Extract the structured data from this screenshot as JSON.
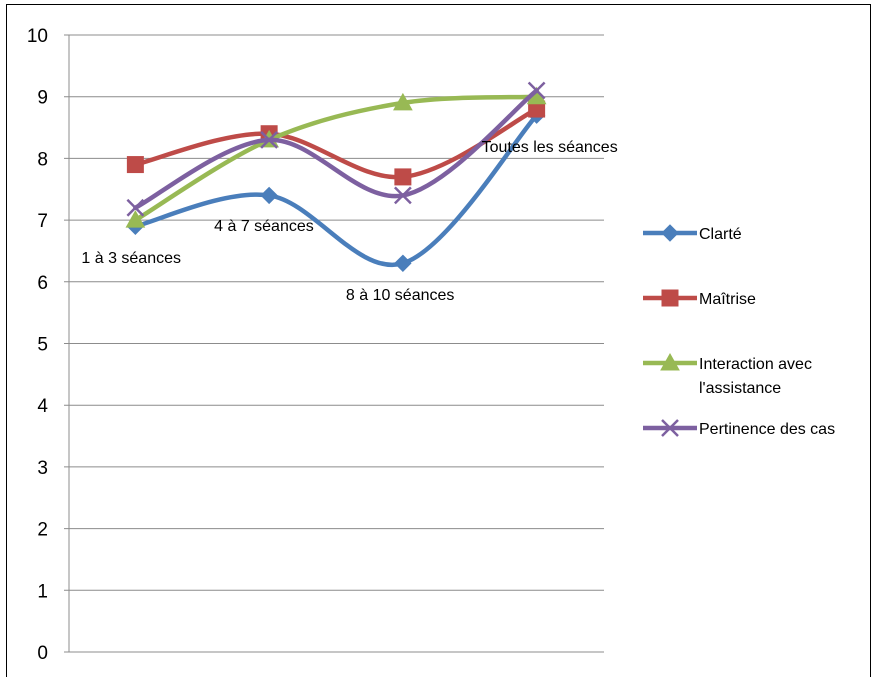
{
  "chart_data": {
    "type": "line",
    "title": "",
    "xlabel": "",
    "ylabel": "",
    "ylim": [
      0,
      10
    ],
    "yticks": [
      0,
      1,
      2,
      3,
      4,
      5,
      6,
      7,
      8,
      9,
      10
    ],
    "grid": "horizontal",
    "legend_position": "right",
    "categories": [
      "1 à 3 séances",
      "4 à 7 séances",
      "8 à 10 séances",
      "Toutes les séances"
    ],
    "series": [
      {
        "name": "Clarté",
        "values": [
          6.9,
          7.4,
          6.3,
          8.7
        ],
        "color": "#4A7EBB",
        "marker": "diamond"
      },
      {
        "name": "Maîtrise",
        "values": [
          7.9,
          8.4,
          7.7,
          8.8
        ],
        "color": "#BE4B48",
        "marker": "square"
      },
      {
        "name": "Interaction avec l'assistance",
        "values": [
          7.0,
          8.3,
          8.9,
          9.0
        ],
        "color": "#98B954",
        "marker": "triangle"
      },
      {
        "name": "Pertinence des cas",
        "values": [
          7.2,
          8.3,
          7.4,
          9.1
        ],
        "color": "#7D60A0",
        "marker": "x"
      }
    ]
  }
}
